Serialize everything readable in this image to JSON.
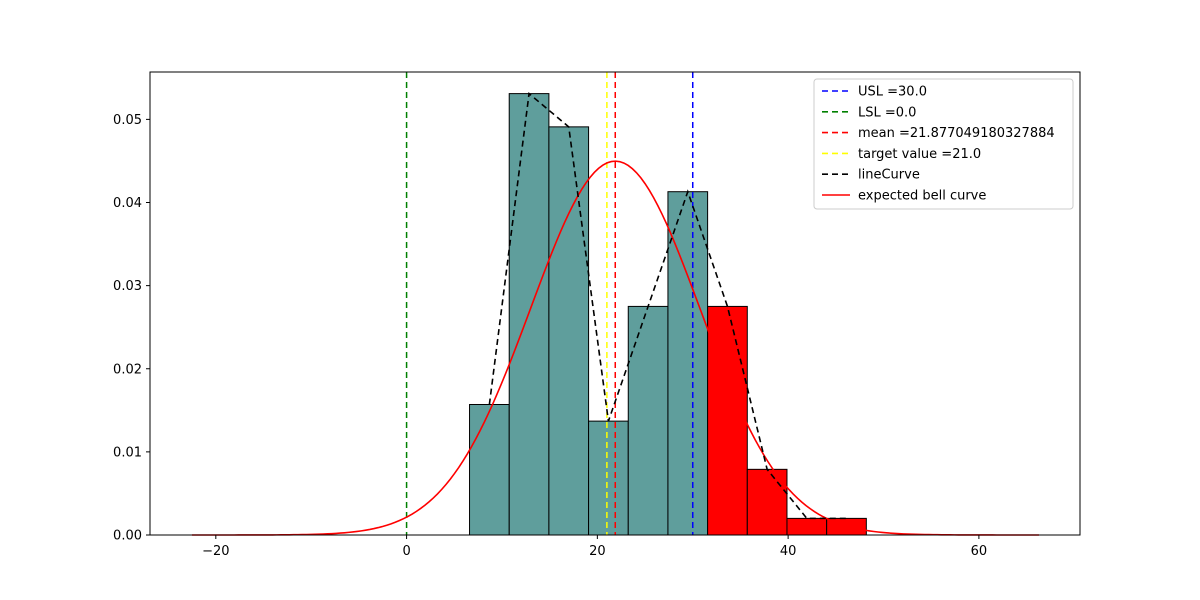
{
  "chart_data": {
    "type": "bar",
    "title": "",
    "xlabel": "",
    "ylabel": "",
    "xlim": [
      -26.9,
      70.6
    ],
    "ylim": [
      0,
      0.0557
    ],
    "x_ticks": [
      -20,
      0,
      20,
      40,
      60
    ],
    "x_tick_labels": [
      "−20",
      "0",
      "20",
      "40",
      "60"
    ],
    "y_ticks": [
      0.0,
      0.01,
      0.02,
      0.03,
      0.04,
      0.05
    ],
    "y_tick_labels": [
      "0.00",
      "0.01",
      "0.02",
      "0.03",
      "0.04",
      "0.05"
    ],
    "grid": false,
    "legend_position": "top-right",
    "histogram": {
      "bin_edges": [
        6.6,
        10.76,
        14.92,
        19.08,
        23.24,
        27.4,
        31.56,
        35.72,
        39.88,
        44.04,
        48.2
      ],
      "densities": [
        0.0157,
        0.0531,
        0.0491,
        0.0137,
        0.0275,
        0.0413,
        0.0275,
        0.0079,
        0.002,
        0.002
      ],
      "colors": [
        "#5f9e9c",
        "#5f9e9c",
        "#5f9e9c",
        "#5f9e9c",
        "#5f9e9c",
        "#5f9e9c",
        "#ff0000",
        "#ff0000",
        "#ff0000",
        "#ff0000"
      ],
      "edge_color": "#000000"
    },
    "vertical_lines": [
      {
        "name": "USL =30.0",
        "x": 30.0,
        "color": "#0000ff"
      },
      {
        "name": "LSL =0.0",
        "x": 0.0,
        "color": "#008000"
      },
      {
        "name": "mean =21.877049180327884",
        "x": 21.877,
        "color": "#ff0000"
      },
      {
        "name": "target value =21.0",
        "x": 21.0,
        "color": "#ffff00"
      }
    ],
    "line_curve": {
      "name": "lineCurve",
      "color": "#000000",
      "x": [
        8.68,
        12.84,
        17.0,
        21.16,
        25.32,
        29.48,
        33.64,
        37.8,
        41.96,
        46.12
      ],
      "y": [
        0.0157,
        0.0531,
        0.0491,
        0.0137,
        0.0275,
        0.0413,
        0.0275,
        0.0079,
        0.002,
        0.002
      ]
    },
    "bell_curve": {
      "name": "expected bell curve",
      "color": "#ff0000",
      "mean": 21.877,
      "std": 8.87,
      "x_range": [
        -22.5,
        66.3
      ]
    },
    "legend": [
      {
        "label": "USL =30.0",
        "color": "#0000ff",
        "style": "dashed"
      },
      {
        "label": "LSL =0.0",
        "color": "#008000",
        "style": "dashed"
      },
      {
        "label": "mean =21.877049180327884",
        "color": "#ff0000",
        "style": "dashed"
      },
      {
        "label": "target value =21.0",
        "color": "#ffff00",
        "style": "dashed"
      },
      {
        "label": "lineCurve",
        "color": "#000000",
        "style": "dashed"
      },
      {
        "label": "expected bell curve",
        "color": "#ff0000",
        "style": "solid"
      }
    ]
  }
}
